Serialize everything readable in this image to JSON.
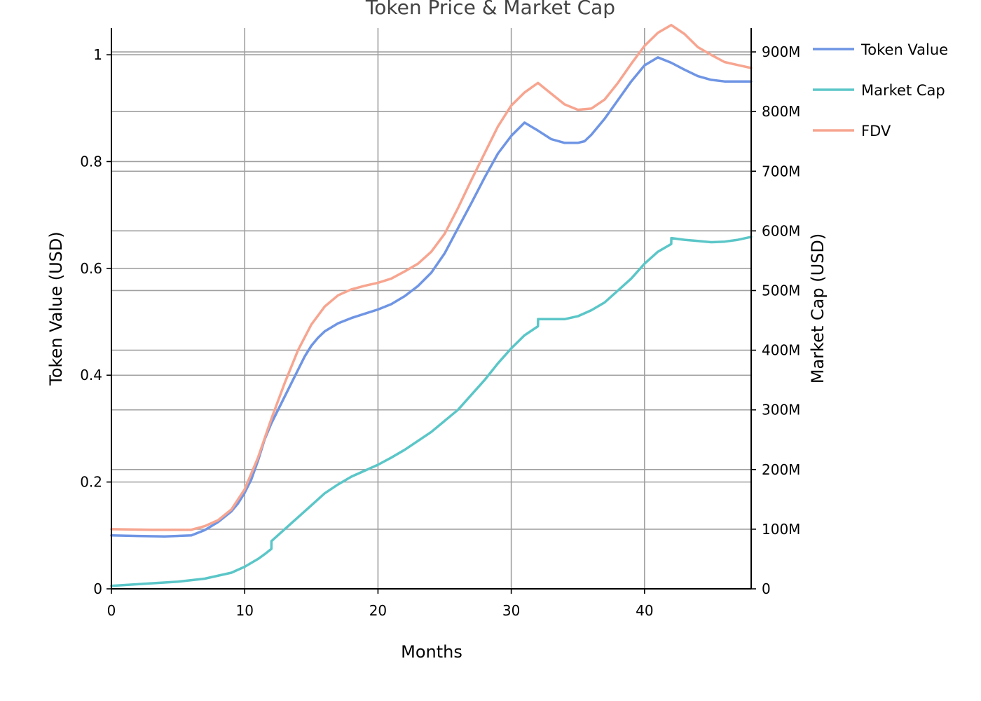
{
  "chart_data": {
    "type": "line",
    "title": "Token Price & Market Cap",
    "xlabel": "Months",
    "ylabel_left": "Token Value (USD)",
    "ylabel_right": "Market Cap (USD)",
    "xlim": [
      0,
      48
    ],
    "ylim_left": [
      0,
      1.05
    ],
    "ylim_right": [
      0,
      940000000
    ],
    "x_ticks": [
      0,
      10,
      20,
      30,
      40
    ],
    "x_tick_labels": [
      "0",
      "10",
      "20",
      "30",
      "40"
    ],
    "y_left_ticks": [
      0,
      0.2,
      0.4,
      0.6,
      0.8,
      1.0
    ],
    "y_left_tick_labels": [
      "0",
      "0.2",
      "0.4",
      "0.6",
      "0.8",
      "1"
    ],
    "y_right_ticks": [
      0,
      100000000,
      200000000,
      300000000,
      400000000,
      500000000,
      600000000,
      700000000,
      800000000,
      900000000
    ],
    "y_right_tick_labels": [
      "0",
      "100M",
      "200M",
      "300M",
      "400M",
      "500M",
      "600M",
      "700M",
      "800M",
      "900M"
    ],
    "grid": true,
    "legend_position": "right",
    "series": [
      {
        "name": "Token Value",
        "axis": "left",
        "color": "#6f95e4",
        "x": [
          0,
          2,
          4,
          6,
          7,
          8,
          9,
          9.5,
          10,
          10.5,
          11,
          11.5,
          12,
          13,
          14,
          14.5,
          15,
          15.5,
          16,
          17,
          18,
          19,
          20,
          21,
          22,
          23,
          24,
          25,
          26,
          27,
          28,
          29,
          30,
          31,
          32,
          33,
          34,
          35,
          35.5,
          36,
          37,
          38,
          39,
          40,
          41,
          42,
          43,
          44,
          45,
          46,
          47,
          48
        ],
        "y": [
          0.1,
          0.099,
          0.098,
          0.1,
          0.11,
          0.125,
          0.145,
          0.16,
          0.18,
          0.205,
          0.24,
          0.28,
          0.31,
          0.36,
          0.41,
          0.435,
          0.455,
          0.47,
          0.482,
          0.497,
          0.507,
          0.515,
          0.523,
          0.533,
          0.548,
          0.567,
          0.592,
          0.628,
          0.675,
          0.722,
          0.77,
          0.815,
          0.848,
          0.873,
          0.858,
          0.842,
          0.835,
          0.835,
          0.838,
          0.85,
          0.88,
          0.915,
          0.95,
          0.98,
          0.995,
          0.985,
          0.972,
          0.96,
          0.953,
          0.95,
          0.95,
          0.95
        ]
      },
      {
        "name": "Market Cap",
        "axis": "right",
        "color": "#5bc6c8",
        "x": [
          0,
          5,
          7,
          9,
          10,
          11,
          11.5,
          12,
          12.01,
          13,
          14,
          15,
          16,
          17,
          18,
          20,
          21,
          22,
          24,
          26,
          28,
          29,
          30,
          31,
          32,
          32.01,
          33,
          34,
          35,
          36,
          37,
          38,
          39,
          40,
          41,
          42,
          42.01,
          43,
          44,
          45,
          46,
          47,
          48
        ],
        "y": [
          5000000,
          12000000,
          17000000,
          27000000,
          37000000,
          50000000,
          58000000,
          67000000,
          80000000,
          100000000,
          120000000,
          140000000,
          160000000,
          175000000,
          188000000,
          208000000,
          220000000,
          233000000,
          263000000,
          300000000,
          350000000,
          378000000,
          403000000,
          425000000,
          440000000,
          452000000,
          452000000,
          452000000,
          457000000,
          467000000,
          480000000,
          500000000,
          520000000,
          545000000,
          565000000,
          578000000,
          588000000,
          585000000,
          583000000,
          581000000,
          582000000,
          585000000,
          590000000
        ]
      },
      {
        "name": "FDV",
        "axis": "right",
        "color": "#f7a590",
        "x": [
          0,
          3,
          6,
          7,
          8,
          9,
          10,
          11,
          12,
          13,
          14,
          15,
          16,
          17,
          18,
          19,
          20,
          21,
          22,
          23,
          24,
          25,
          26,
          27,
          28,
          29,
          30,
          31,
          32,
          33,
          34,
          35,
          36,
          37,
          38,
          39,
          40,
          41,
          42,
          43,
          44,
          45,
          46,
          47,
          48
        ],
        "y": [
          100000000,
          99000000,
          99000000,
          105000000,
          115000000,
          133000000,
          167000000,
          220000000,
          285000000,
          345000000,
          400000000,
          443000000,
          473000000,
          492000000,
          502000000,
          508000000,
          513000000,
          520000000,
          532000000,
          545000000,
          565000000,
          595000000,
          638000000,
          685000000,
          730000000,
          775000000,
          810000000,
          832000000,
          848000000,
          830000000,
          812000000,
          803000000,
          805000000,
          820000000,
          848000000,
          880000000,
          910000000,
          932000000,
          945000000,
          930000000,
          908000000,
          895000000,
          883000000,
          878000000,
          873000000
        ]
      }
    ]
  }
}
